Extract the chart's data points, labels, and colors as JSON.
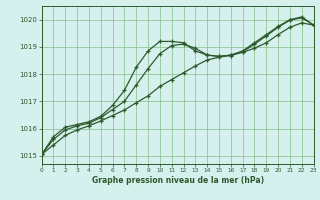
{
  "title": "Graphe pression niveau de la mer (hPa)",
  "bg_color": "#d6f0ee",
  "line_color": "#2d5a2d",
  "grid_color": "#7aba7a",
  "xlim": [
    0,
    23
  ],
  "ylim": [
    1014.7,
    1020.5
  ],
  "yticks": [
    1015,
    1016,
    1017,
    1018,
    1019,
    1020
  ],
  "xticks": [
    0,
    1,
    2,
    3,
    4,
    5,
    6,
    7,
    8,
    9,
    10,
    11,
    12,
    13,
    14,
    15,
    16,
    17,
    18,
    19,
    20,
    21,
    22,
    23
  ],
  "series1_x": [
    0,
    1,
    2,
    3,
    4,
    5,
    6,
    7,
    8,
    9,
    10,
    11,
    12,
    13,
    14,
    15,
    16,
    17,
    18,
    19,
    20,
    21,
    22,
    23
  ],
  "series1_y": [
    1015.05,
    1015.7,
    1016.05,
    1016.15,
    1016.25,
    1016.45,
    1016.85,
    1017.4,
    1018.25,
    1018.85,
    1019.2,
    1019.2,
    1019.15,
    1018.85,
    1018.7,
    1018.65,
    1018.7,
    1018.85,
    1019.15,
    1019.45,
    1019.75,
    1020.0,
    1020.1,
    1019.8
  ],
  "series2_x": [
    0,
    1,
    2,
    3,
    4,
    5,
    6,
    7,
    8,
    9,
    10,
    11,
    12,
    13,
    14,
    15,
    16,
    17,
    18,
    19,
    20,
    21,
    22,
    23
  ],
  "series2_y": [
    1015.05,
    1015.6,
    1015.95,
    1016.1,
    1016.2,
    1016.4,
    1016.7,
    1017.0,
    1017.6,
    1018.2,
    1018.75,
    1019.05,
    1019.1,
    1018.95,
    1018.7,
    1018.65,
    1018.68,
    1018.82,
    1019.1,
    1019.4,
    1019.72,
    1019.98,
    1020.07,
    1019.8
  ],
  "series3_x": [
    0,
    1,
    2,
    3,
    4,
    5,
    6,
    7,
    8,
    9,
    10,
    11,
    12,
    13,
    14,
    15,
    16,
    17,
    18,
    19,
    20,
    21,
    22,
    23
  ],
  "series3_y": [
    1015.05,
    1015.4,
    1015.75,
    1015.95,
    1016.1,
    1016.28,
    1016.48,
    1016.68,
    1016.95,
    1017.2,
    1017.55,
    1017.8,
    1018.05,
    1018.3,
    1018.52,
    1018.62,
    1018.7,
    1018.8,
    1018.95,
    1019.15,
    1019.45,
    1019.72,
    1019.88,
    1019.8
  ]
}
